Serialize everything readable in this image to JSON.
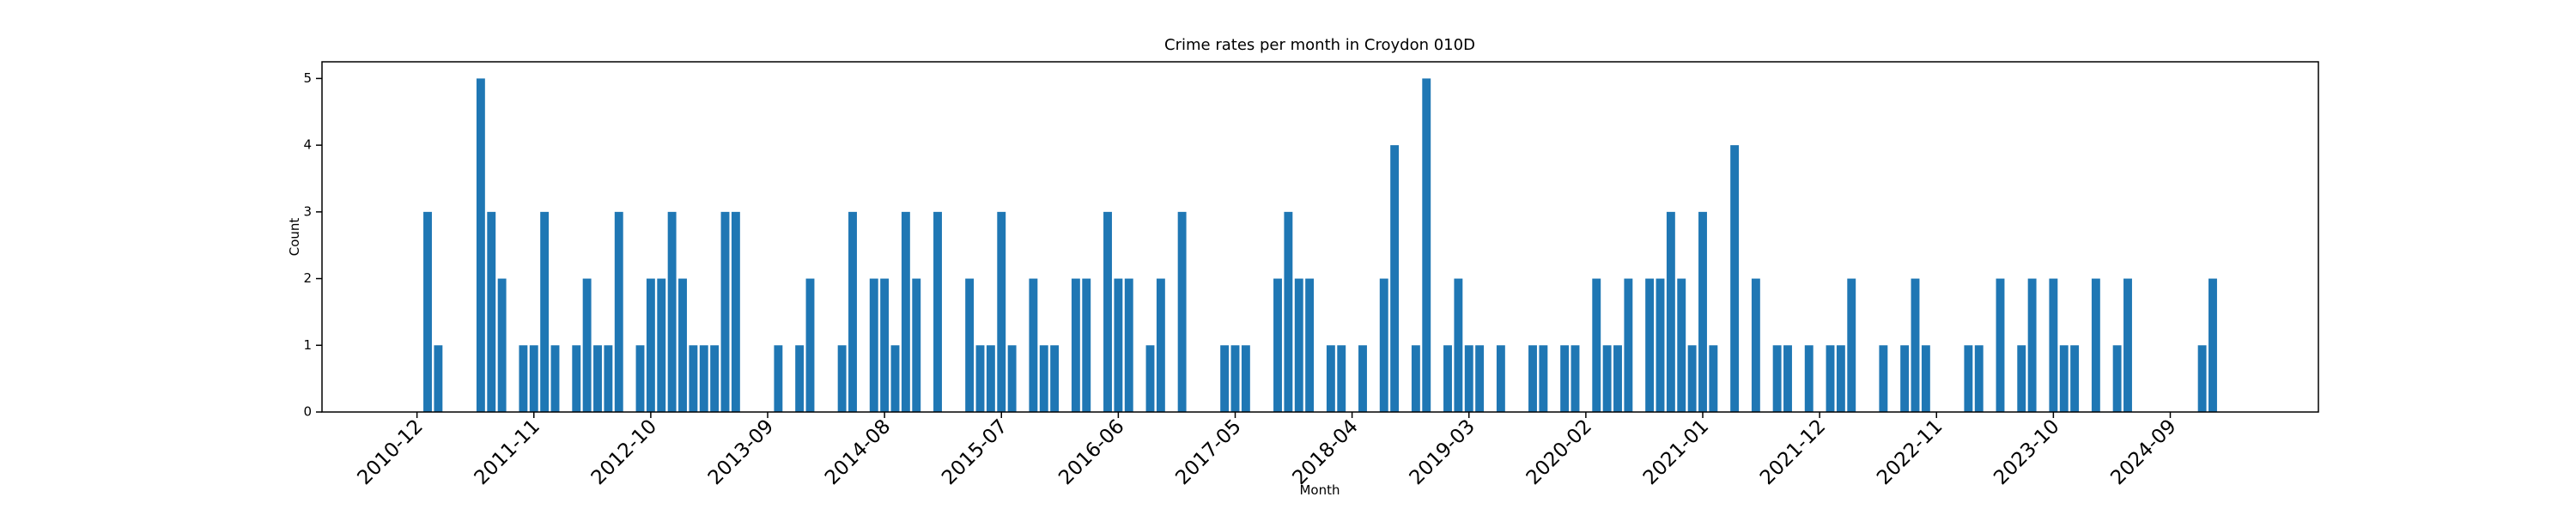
{
  "chart_data": {
    "type": "bar",
    "title": "Crime rates per month in Croydon 010D",
    "x_label": "Month",
    "y_label": "Count",
    "color": "#1f77b4",
    "grid": false,
    "categories": [
      "2010-12",
      null,
      null,
      null,
      null,
      null,
      null,
      null,
      null,
      null,
      null,
      "2011-11",
      null,
      null,
      null,
      null,
      null,
      null,
      null,
      null,
      null,
      null,
      "2012-10",
      null,
      null,
      null,
      null,
      null,
      null,
      null,
      null,
      null,
      null,
      "2013-09",
      null,
      null,
      null,
      null,
      null,
      null,
      null,
      null,
      null,
      null,
      "2014-08",
      null,
      null,
      null,
      null,
      null,
      null,
      null,
      null,
      null,
      null,
      "2015-07",
      null,
      null,
      null,
      null,
      null,
      null,
      null,
      null,
      null,
      null,
      "2016-06",
      null,
      null,
      null,
      null,
      null,
      null,
      null,
      null,
      null,
      null,
      "2017-05",
      null,
      null,
      null,
      null,
      null,
      null,
      null,
      null,
      null,
      null,
      "2018-04",
      null,
      null,
      null,
      null,
      null,
      null,
      null,
      null,
      null,
      null,
      "2019-03",
      null,
      null,
      null,
      null,
      null,
      null,
      null,
      null,
      null,
      null,
      "2020-02",
      null,
      null,
      null,
      null,
      null,
      null,
      null,
      null,
      null,
      null,
      "2021-01",
      null,
      null,
      null,
      null,
      null,
      null,
      null,
      null,
      null,
      null,
      "2021-12",
      null,
      null,
      null,
      null,
      null,
      null,
      null,
      null,
      null,
      null,
      "2022-11",
      null,
      null,
      null,
      null,
      null,
      null,
      null,
      null,
      null,
      null,
      "2023-10",
      null,
      null,
      null,
      null,
      null,
      null,
      null,
      null,
      null,
      null,
      "2024-09",
      null,
      null,
      null,
      null,
      null
    ],
    "values": [
      0,
      3,
      1,
      0,
      0,
      0,
      5,
      3,
      2,
      0,
      1,
      1,
      3,
      1,
      0,
      1,
      2,
      1,
      1,
      3,
      0,
      1,
      2,
      2,
      3,
      2,
      1,
      1,
      1,
      3,
      3,
      0,
      0,
      0,
      1,
      0,
      1,
      2,
      0,
      0,
      1,
      3,
      0,
      2,
      2,
      1,
      3,
      2,
      0,
      3,
      0,
      0,
      2,
      1,
      1,
      3,
      1,
      0,
      2,
      1,
      1,
      0,
      2,
      2,
      0,
      3,
      2,
      2,
      0,
      1,
      2,
      0,
      3,
      0,
      0,
      0,
      1,
      1,
      1,
      0,
      0,
      2,
      3,
      2,
      2,
      0,
      1,
      1,
      0,
      1,
      0,
      2,
      4,
      0,
      1,
      5,
      0,
      1,
      2,
      1,
      1,
      0,
      1,
      0,
      0,
      1,
      1,
      0,
      1,
      1,
      0,
      2,
      1,
      1,
      2,
      0,
      2,
      2,
      3,
      2,
      1,
      3,
      1,
      0,
      4,
      0,
      2,
      0,
      1,
      1,
      0,
      1,
      0,
      1,
      1,
      2,
      0,
      0,
      1,
      0,
      1,
      2,
      1,
      0,
      0,
      0,
      1,
      1,
      0,
      2,
      0,
      1,
      2,
      0,
      2,
      1,
      1,
      0,
      2,
      0,
      1,
      2,
      0,
      0,
      0,
      0,
      0,
      0,
      1,
      2,
      0
    ],
    "ylim": [
      0,
      5.25
    ],
    "yticks": [
      0,
      1,
      2,
      3,
      4,
      5
    ]
  }
}
